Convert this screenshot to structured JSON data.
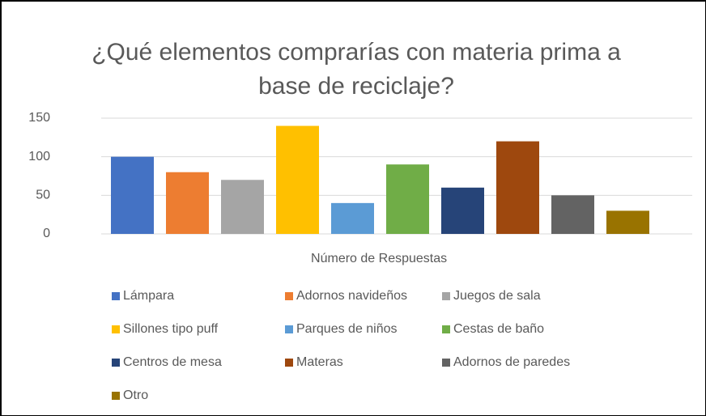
{
  "chart_data": {
    "type": "bar",
    "title": "¿Qué elementos comprarías con materia prima a base de reciclaje?",
    "categories": [
      "Número de Respuestas"
    ],
    "series": [
      {
        "name": "Lámpara",
        "color": "#4472c4",
        "values": [
          100
        ]
      },
      {
        "name": "Adornos navideños",
        "color": "#ed7d31",
        "values": [
          80
        ]
      },
      {
        "name": "Juegos de sala",
        "color": "#a5a5a5",
        "values": [
          70
        ]
      },
      {
        "name": "Sillones tipo puff",
        "color": "#ffc000",
        "values": [
          140
        ]
      },
      {
        "name": "Parques de niños",
        "color": "#5b9bd5",
        "values": [
          40
        ]
      },
      {
        "name": "Cestas de baño",
        "color": "#70ad47",
        "values": [
          90
        ]
      },
      {
        "name": "Centros de mesa",
        "color": "#264478",
        "values": [
          60
        ]
      },
      {
        "name": "Materas",
        "color": "#9e480e",
        "values": [
          120
        ]
      },
      {
        "name": "Adornos de paredes",
        "color": "#636363",
        "values": [
          50
        ]
      },
      {
        "name": "Otro",
        "color": "#997300",
        "values": [
          30
        ]
      }
    ],
    "ylim": [
      0,
      150
    ],
    "yticks": [
      0,
      50,
      100,
      150
    ],
    "grid": true,
    "legend": "bottom"
  }
}
